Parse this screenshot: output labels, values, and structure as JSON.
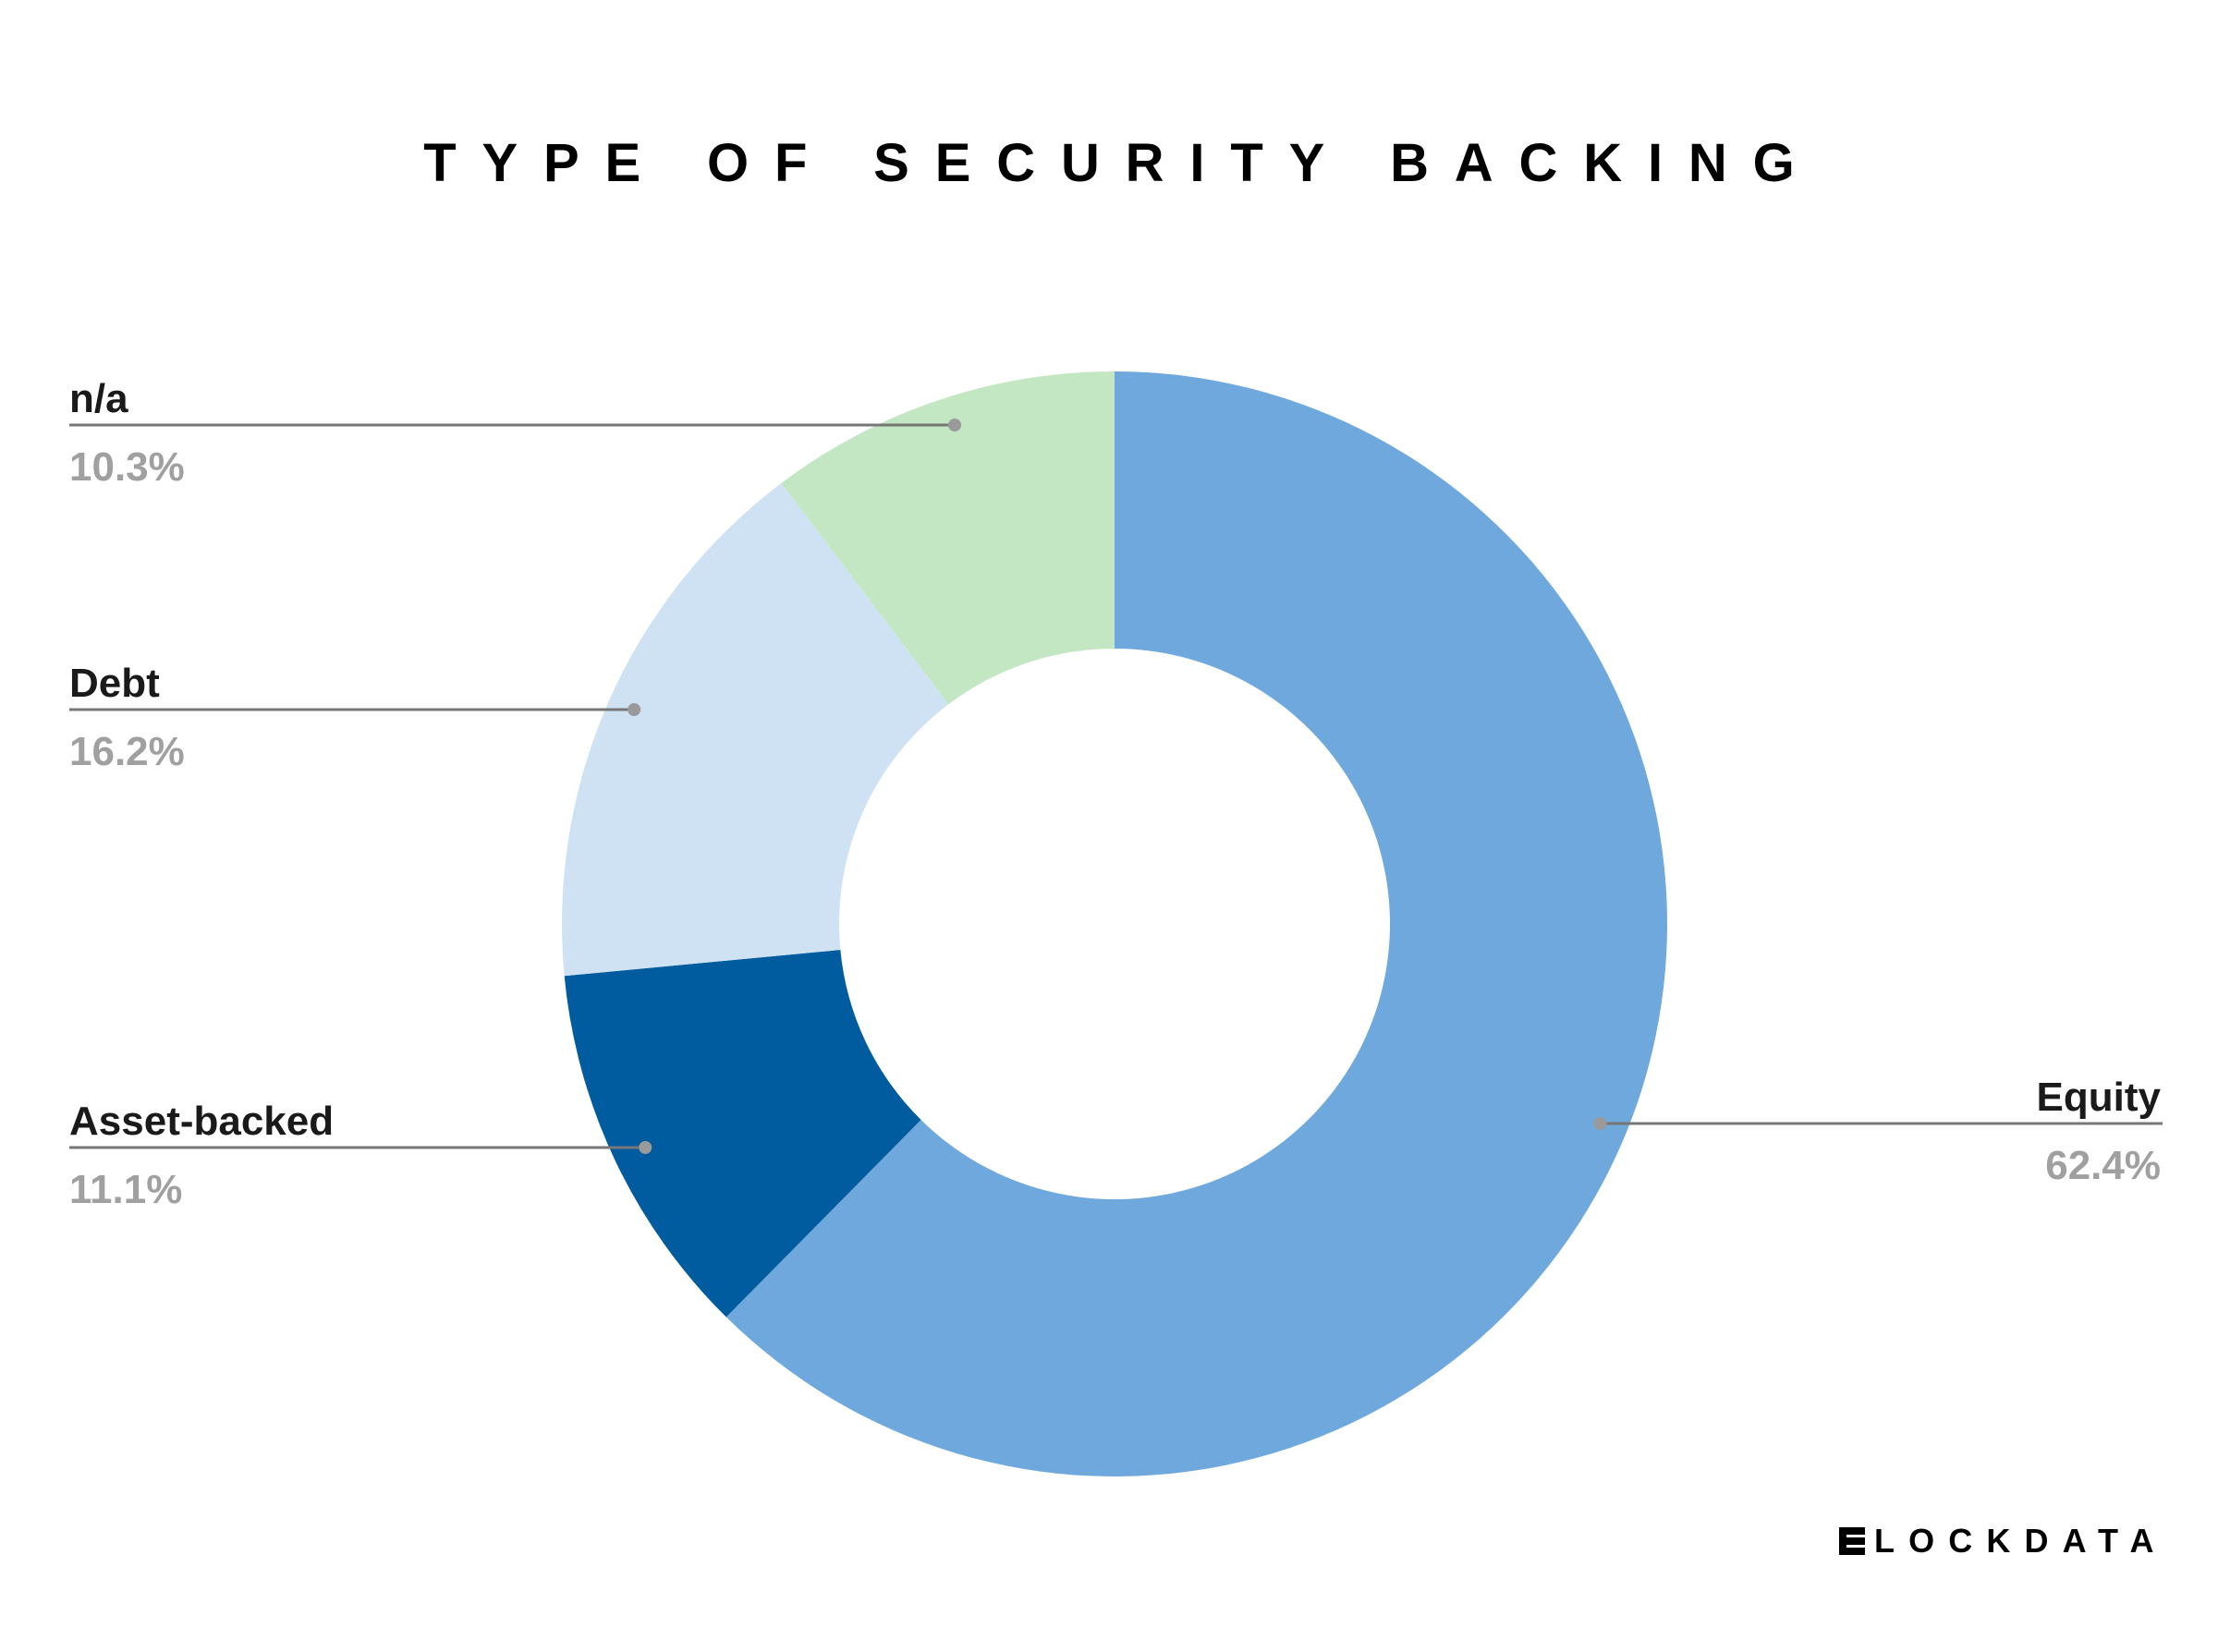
{
  "chart_data": {
    "type": "pie",
    "title": "TYPE OF SECURITY BACKING",
    "donut": true,
    "labels": [
      "Equity",
      "Asset-backed",
      "Debt",
      "n/a"
    ],
    "values": [
      62.4,
      11.1,
      16.2,
      10.3
    ],
    "value_labels": [
      "62.4%",
      "11.1%",
      "16.2%",
      "10.3%"
    ],
    "colors": [
      "#6fa8dc",
      "#005b9f",
      "#cfe2f3",
      "#c3e7c3"
    ],
    "legend": "callout labels"
  },
  "branding": {
    "logo_text": "LOCKDATA"
  }
}
